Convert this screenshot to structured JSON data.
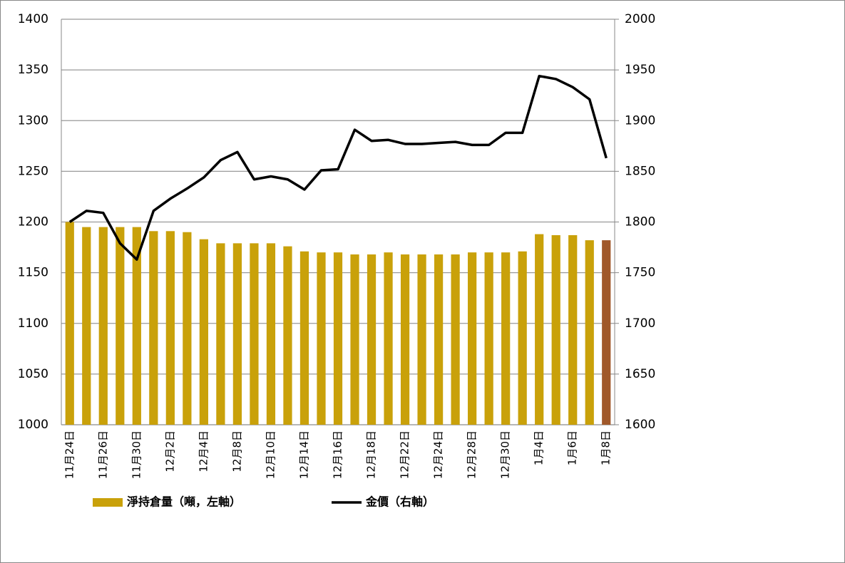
{
  "chart_data": {
    "type": "bar-line",
    "categories": [
      "11月24日",
      null,
      "11月26日",
      null,
      "11月30日",
      null,
      "12月2日",
      null,
      "12月4日",
      null,
      "12月8日",
      null,
      "12月10日",
      null,
      "12月14日",
      null,
      "12月16日",
      null,
      "12月18日",
      null,
      "12月22日",
      null,
      "12月24日",
      null,
      "12月28日",
      null,
      "12月30日",
      null,
      "1月4日",
      null,
      "1月6日",
      null,
      "1月8日"
    ],
    "series": [
      {
        "name": "淨持倉量（噸，左軸）",
        "type": "bar",
        "color": "#c9a10a",
        "colors": [
          "#c9a10a",
          "#c9a10a",
          "#c9a10a",
          "#c9a10a",
          "#c9a10a",
          "#c9a10a",
          "#c9a10a",
          "#c9a10a",
          "#c9a10a",
          "#c9a10a",
          "#c9a10a",
          "#c9a10a",
          "#c9a10a",
          "#c9a10a",
          "#c9a10a",
          "#c9a10a",
          "#c9a10a",
          "#c9a10a",
          "#c9a10a",
          "#c9a10a",
          "#c9a10a",
          "#c9a10a",
          "#c9a10a",
          "#c9a10a",
          "#c9a10a",
          "#c9a10a",
          "#c9a10a",
          "#c9a10a",
          "#c9a10a",
          "#c9a10a",
          "#c9a10a",
          "#c9a10a",
          "#a0582a"
        ],
        "values": [
          1200,
          1195,
          1195,
          1195,
          1195,
          1191,
          1191,
          1190,
          1183,
          1179,
          1179,
          1179,
          1179,
          1176,
          1171,
          1170,
          1170,
          1168,
          1168,
          1170,
          1168,
          1168,
          1168,
          1168,
          1170,
          1170,
          1170,
          1171,
          1188,
          1187,
          1187,
          1182,
          1182
        ]
      },
      {
        "name": "金價（右軸）",
        "type": "line",
        "axis": "y2",
        "color": "#000000",
        "values": [
          1800,
          1811,
          1809,
          1779,
          1763,
          1811,
          1823,
          1833,
          1844,
          1861,
          1869,
          1842,
          1845,
          1842,
          1832,
          1851,
          1852,
          1891,
          1880,
          1881,
          1877,
          1877,
          1878,
          1879,
          1876,
          1876,
          1888,
          1888,
          1944,
          1941,
          1933,
          1921,
          1863
        ]
      }
    ],
    "ylim": [
      1000,
      1400
    ],
    "yticks": [
      1000,
      1050,
      1100,
      1150,
      1200,
      1250,
      1300,
      1350,
      1400
    ],
    "y2lim": [
      1600,
      2000
    ],
    "y2ticks": [
      1600,
      1650,
      1700,
      1750,
      1800,
      1850,
      1900,
      1950,
      2000
    ],
    "grid": true,
    "legend": "bottom"
  }
}
